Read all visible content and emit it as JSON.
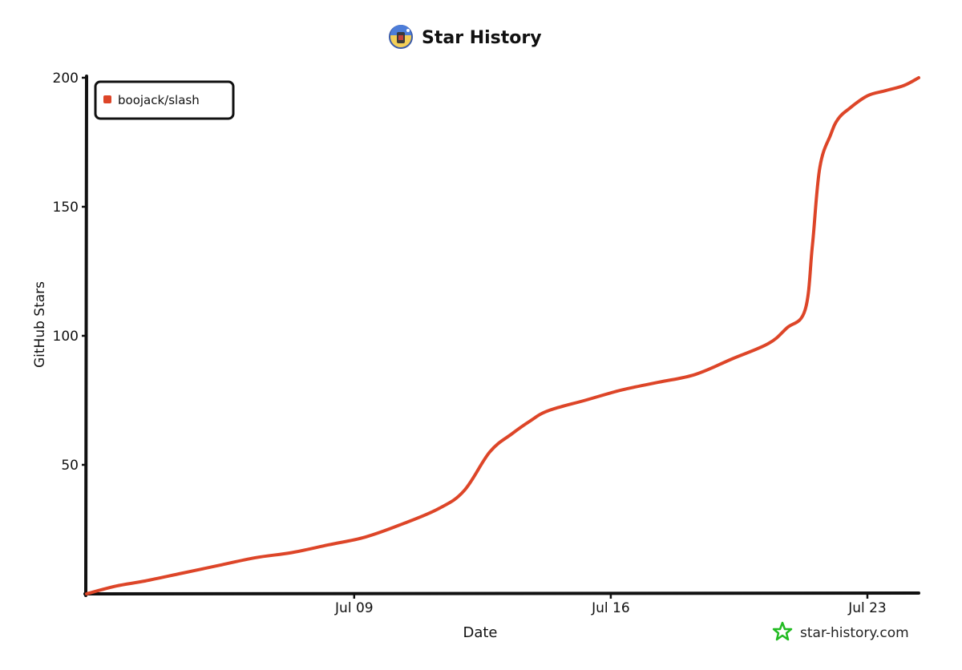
{
  "chart_data": {
    "type": "line",
    "title": "Star History",
    "xlabel": "Date",
    "ylabel": "GitHub Stars",
    "ylim": [
      0,
      200
    ],
    "y_ticks": [
      50,
      100,
      150,
      200
    ],
    "x_ticks": [
      {
        "label": "Jul 09",
        "day": 9
      },
      {
        "label": "Jul 16",
        "day": 16
      },
      {
        "label": "Jul 23",
        "day": 23
      }
    ],
    "x_domain_days": [
      1.7,
      24.4
    ],
    "legend_position": "top-left",
    "series": [
      {
        "name": "boojack/slash",
        "color": "#dd4528",
        "x_days": [
          1.7,
          2.5,
          3.3,
          4.3,
          5.3,
          6.3,
          7.3,
          8.3,
          9.3,
          10.3,
          11.3,
          12.0,
          12.7,
          13.3,
          13.8,
          14.3,
          15.3,
          16.3,
          17.3,
          18.3,
          19.3,
          20.3,
          20.8,
          21.3,
          21.5,
          21.7,
          22.0,
          22.2,
          22.5,
          23.0,
          23.5,
          24.0,
          24.4
        ],
        "values": [
          0,
          3,
          5,
          8,
          11,
          14,
          16,
          19,
          22,
          27,
          33,
          40,
          55,
          62,
          67,
          71,
          75,
          79,
          82,
          85,
          91,
          97,
          103,
          110,
          135,
          165,
          178,
          184,
          188,
          193,
          195,
          197,
          200
        ]
      }
    ]
  },
  "watermark": {
    "text": "star-history.com",
    "icon": "star-outline-icon",
    "color": "#22bb22"
  },
  "title_icon": "avatar-icon"
}
